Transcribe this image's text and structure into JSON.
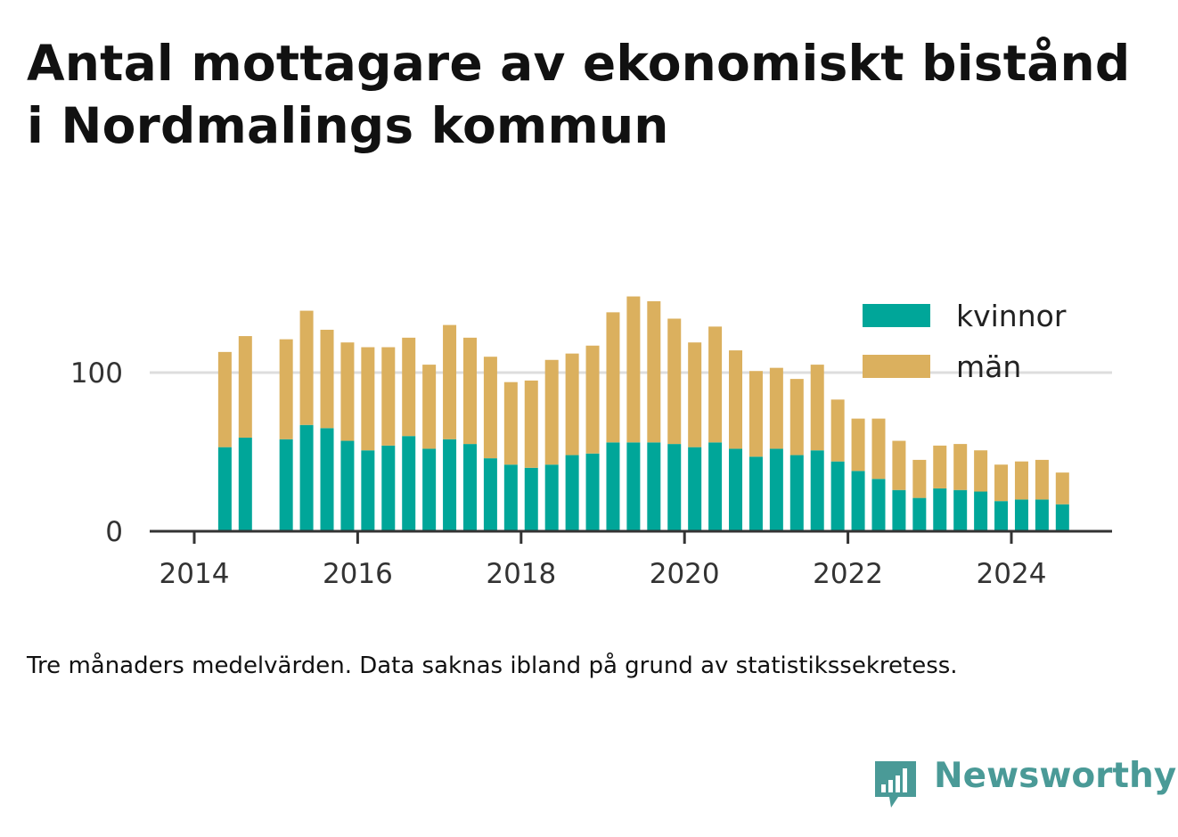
{
  "title": "Antal mottagare av ekonomiskt bistånd i Nordmalings kommun",
  "caption": "Tre månaders medelvärden. Data saknas ibland på grund av statistikssekretess.",
  "brand": {
    "name": "Newsworthy",
    "icon": "bar-chart-speech-icon",
    "color": "#4a9a97"
  },
  "chart_data": {
    "type": "bar",
    "stacked": true,
    "xlabel": "",
    "ylabel": "",
    "x_ticks": [
      "2014",
      "2016",
      "2018",
      "2020",
      "2022",
      "2024"
    ],
    "y_ticks": [
      0,
      100
    ],
    "ylim": [
      0,
      150
    ],
    "xlim": [
      2014.0,
      2025.25
    ],
    "grid": true,
    "legend_position": "top-right",
    "colors": {
      "kvinnor": "#00a699",
      "man": "#dbb05e",
      "axis": "#333333",
      "grid": "#dddddd"
    },
    "x": [
      2014.375,
      2014.625,
      2015.125,
      2015.375,
      2015.625,
      2015.875,
      2016.125,
      2016.375,
      2016.625,
      2016.875,
      2017.125,
      2017.375,
      2017.625,
      2017.875,
      2018.125,
      2018.375,
      2018.625,
      2018.875,
      2019.125,
      2019.375,
      2019.625,
      2019.875,
      2020.125,
      2020.375,
      2020.625,
      2020.875,
      2021.125,
      2021.375,
      2021.625,
      2021.875,
      2022.125,
      2022.375,
      2022.625,
      2022.875,
      2023.125,
      2023.375,
      2023.625,
      2023.875,
      2024.125,
      2024.375,
      2024.625
    ],
    "series": [
      {
        "name": "kvinnor",
        "values": [
          53,
          59,
          58,
          67,
          65,
          57,
          51,
          54,
          60,
          52,
          58,
          55,
          46,
          42,
          40,
          42,
          48,
          49,
          56,
          56,
          56,
          55,
          53,
          56,
          52,
          47,
          52,
          48,
          51,
          44,
          38,
          33,
          26,
          21,
          27,
          26,
          25,
          19,
          20,
          20,
          17
        ]
      },
      {
        "name": "män",
        "values": [
          60,
          64,
          63,
          72,
          62,
          62,
          65,
          62,
          62,
          53,
          72,
          67,
          64,
          52,
          55,
          66,
          64,
          68,
          82,
          92,
          89,
          79,
          66,
          73,
          62,
          54,
          51,
          48,
          54,
          39,
          33,
          38,
          31,
          24,
          27,
          29,
          26,
          23,
          24,
          25,
          20
        ]
      }
    ]
  }
}
